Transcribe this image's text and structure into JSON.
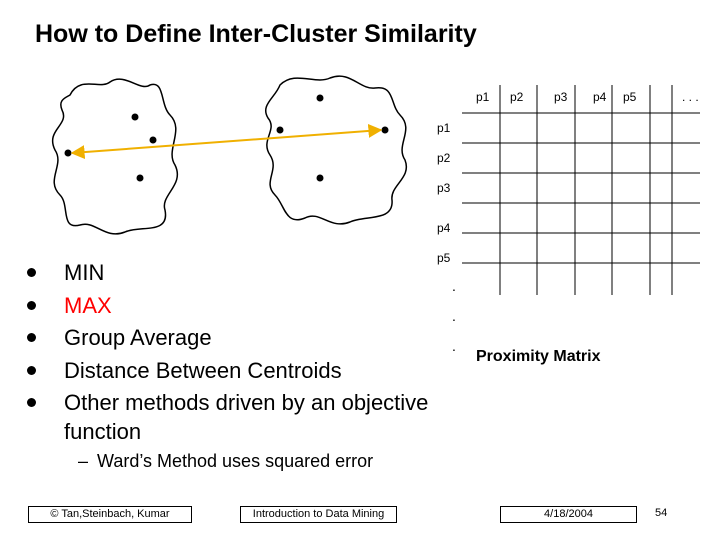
{
  "title": "How to Define Inter-Cluster Similarity",
  "matrix": {
    "column_labels": [
      "p1",
      "p2",
      "p3",
      "p4",
      "p5",
      ". . ."
    ],
    "row_labels": [
      "p1",
      "p2",
      "p3",
      "p4",
      "p5"
    ],
    "row_dots": [
      ".",
      ".",
      "."
    ],
    "caption": "Proximity Matrix"
  },
  "bullets": [
    {
      "text": "MIN",
      "color": "#000000"
    },
    {
      "text": "MAX",
      "color": "#ff0000"
    },
    {
      "text": "Group Average",
      "color": "#000000"
    },
    {
      "text": "Distance Between Centroids",
      "color": "#000000"
    },
    {
      "text": "Other methods driven by an objective function",
      "color": "#000000"
    }
  ],
  "sub_bullets": [
    "Ward’s Method uses squared error"
  ],
  "footer": {
    "left": "© Tan,Steinbach, Kumar",
    "center": "Introduction to Data Mining",
    "date": "4/18/2004",
    "page": "54"
  }
}
